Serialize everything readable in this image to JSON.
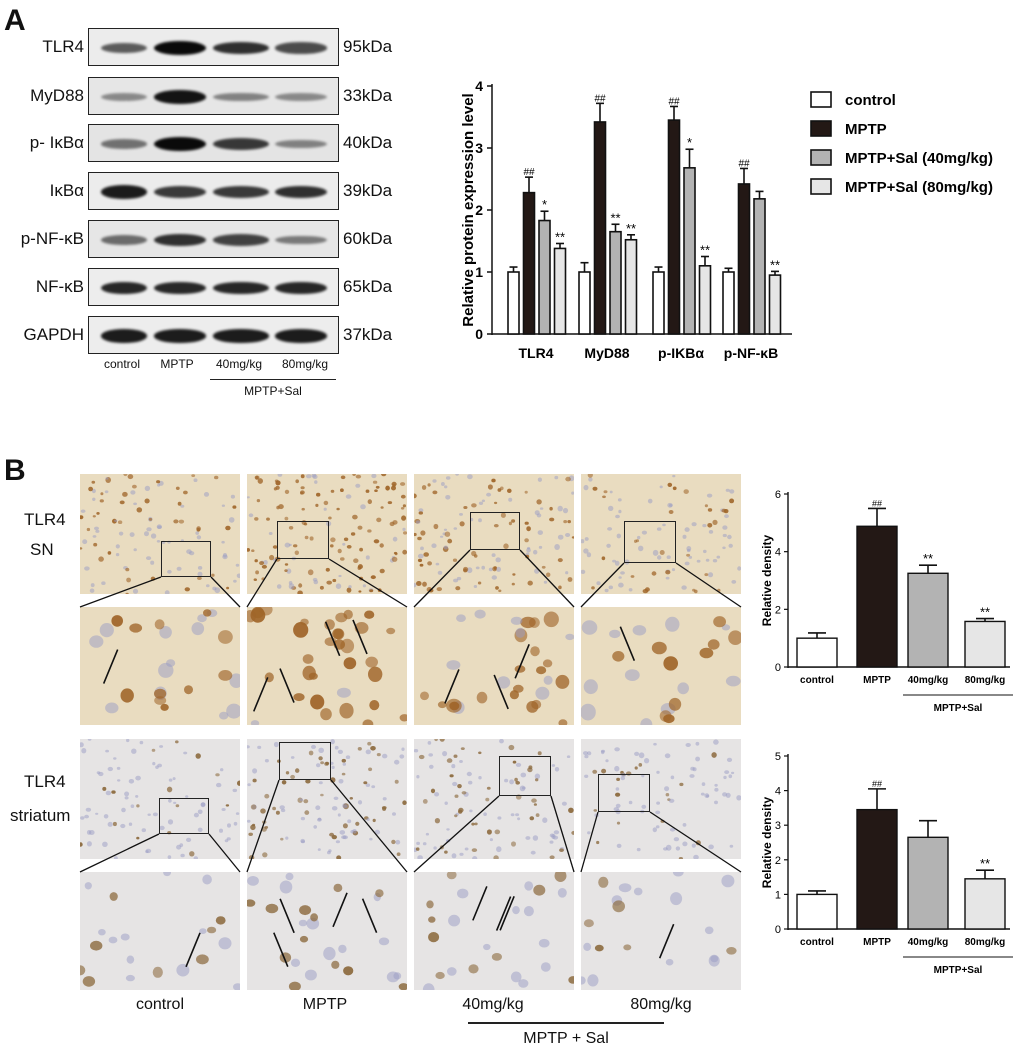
{
  "panel_a": {
    "letter": "A",
    "blots": [
      {
        "protein": "TLR4",
        "kda": "95kDa",
        "bands": [
          0.55,
          1.0,
          0.8,
          0.65
        ],
        "bg": "#ececec"
      },
      {
        "protein": "MyD88",
        "kda": "33kDa",
        "bands": [
          0.25,
          0.95,
          0.3,
          0.25
        ],
        "bg": "#e6e6e6"
      },
      {
        "protein": "p- IκBα",
        "kda": "40kDa",
        "bands": [
          0.4,
          1.0,
          0.75,
          0.3
        ],
        "bg": "#e4e4e4"
      },
      {
        "protein": "IκBα",
        "kda": "39kDa",
        "bands": [
          0.9,
          0.75,
          0.75,
          0.8
        ],
        "bg": "#ececec"
      },
      {
        "protein": "p-NF-κB",
        "kda": "60kDa",
        "bands": [
          0.45,
          0.8,
          0.7,
          0.35
        ],
        "bg": "#e6e6e6"
      },
      {
        "protein": "NF-κB",
        "kda": "65kDa",
        "bands": [
          0.85,
          0.85,
          0.85,
          0.85
        ],
        "bg": "#ededed"
      },
      {
        "protein": "GAPDH",
        "kda": "37kDa",
        "bands": [
          0.9,
          0.9,
          0.9,
          0.9
        ],
        "bg": "#ededed"
      }
    ],
    "lane_labels": [
      "control",
      "MPTP",
      "40mg/kg",
      "80mg/kg"
    ],
    "group_label": "MPTP+Sal"
  },
  "panel_b": {
    "letter": "B",
    "row1_labels": [
      "TLR4",
      "SN"
    ],
    "row2_labels": [
      "TLR4",
      "striatum"
    ],
    "column_labels": [
      "control",
      "MPTP",
      "40mg/kg",
      "80mg/kg"
    ],
    "group_label": "MPTP + Sal"
  },
  "colors": {
    "control": "#ffffff",
    "mptp": "#231815",
    "sal40": "#b3b3b3",
    "sal80": "#e6e6e6",
    "stain_sn": "#e9dcc0",
    "stain_striatum": "#e6e4e4"
  },
  "chart_data": [
    {
      "type": "bar",
      "ylabel": "Relative protein expression level",
      "ylim": [
        0,
        4
      ],
      "yticks": [
        "0",
        "1",
        "2",
        "3",
        "4"
      ],
      "categories": [
        "TLR4",
        "MyD88",
        "p-IKBα",
        "p-NF-κB"
      ],
      "legend_position": "right",
      "series": [
        {
          "name": "control",
          "values": [
            1.0,
            1.0,
            1.0,
            1.0
          ],
          "errors": [
            0.08,
            0.15,
            0.08,
            0.06
          ],
          "marks": [
            "",
            "",
            "",
            ""
          ]
        },
        {
          "name": "MPTP",
          "values": [
            2.28,
            3.42,
            3.45,
            2.42
          ],
          "errors": [
            0.25,
            0.3,
            0.22,
            0.25
          ],
          "marks": [
            "##",
            "##",
            "##",
            "##"
          ]
        },
        {
          "name": "MPTP+Sal (40mg/kg)",
          "values": [
            1.83,
            1.65,
            2.68,
            2.18
          ],
          "errors": [
            0.15,
            0.12,
            0.3,
            0.12
          ],
          "marks": [
            "*",
            "**",
            "*",
            ""
          ]
        },
        {
          "name": "MPTP+Sal (80mg/kg)",
          "values": [
            1.38,
            1.52,
            1.1,
            0.95
          ],
          "errors": [
            0.08,
            0.08,
            0.15,
            0.06
          ],
          "marks": [
            "**",
            "**",
            "**",
            "**"
          ]
        }
      ]
    },
    {
      "type": "bar",
      "ylabel": "Relative density",
      "ylim": [
        0,
        6
      ],
      "yticks": [
        "0",
        "2",
        "4",
        "6"
      ],
      "categories": [
        "control",
        "MPTP",
        "40mg/kg",
        "80mg/kg"
      ],
      "group_label": "MPTP+Sal",
      "values": [
        1.0,
        4.88,
        3.25,
        1.58
      ],
      "errors": [
        0.18,
        0.62,
        0.28,
        0.1
      ],
      "marks": [
        "",
        "##",
        "**",
        "**"
      ]
    },
    {
      "type": "bar",
      "ylabel": "Relative density",
      "ylim": [
        0,
        5
      ],
      "yticks": [
        "0",
        "1",
        "2",
        "3",
        "4",
        "5"
      ],
      "categories": [
        "control",
        "MPTP",
        "40mg/kg",
        "80mg/kg"
      ],
      "group_label": "MPTP+Sal",
      "values": [
        1.0,
        3.45,
        2.65,
        1.45
      ],
      "errors": [
        0.1,
        0.6,
        0.48,
        0.25
      ],
      "marks": [
        "",
        "##",
        "",
        "**"
      ]
    }
  ]
}
